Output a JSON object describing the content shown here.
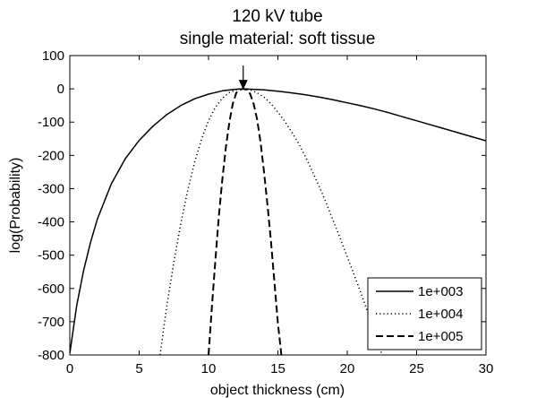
{
  "chart_data": {
    "type": "line",
    "title": "120 kV tube",
    "subtitle": "single material: soft tissue",
    "xlabel": "object thickness (cm)",
    "ylabel": "log(Probability)",
    "xlim": [
      0,
      30
    ],
    "ylim": [
      -800,
      100
    ],
    "xticks": [
      0,
      5,
      10,
      15,
      20,
      25,
      30
    ],
    "yticks": [
      100,
      0,
      -100,
      -200,
      -300,
      -400,
      -500,
      -600,
      -700,
      -800
    ],
    "grid": false,
    "legend_position": "bottom-right",
    "annotation": {
      "type": "arrow",
      "x": 12.5,
      "y": 0
    },
    "series": [
      {
        "name": "1e+003",
        "line_style": "solid",
        "x": [
          0,
          0.5,
          1,
          1.5,
          2,
          3,
          4,
          5,
          6,
          7,
          8,
          9,
          10,
          11,
          12,
          12.5,
          13,
          14,
          15,
          16,
          17,
          18,
          19,
          20,
          21,
          22,
          23,
          24,
          25,
          26,
          27,
          28,
          29,
          30
        ],
        "y": [
          -795,
          -650,
          -545,
          -460,
          -390,
          -285,
          -210,
          -155,
          -112,
          -77,
          -50,
          -30,
          -16,
          -6,
          -1,
          0,
          -1,
          -3,
          -7,
          -12,
          -18,
          -25,
          -33,
          -42,
          -51,
          -61,
          -72,
          -84,
          -96,
          -108,
          -120,
          -132,
          -144,
          -156
        ]
      },
      {
        "name": "1e+004",
        "line_style": "dotted",
        "x": [
          6.5,
          7,
          7.5,
          8,
          8.5,
          9,
          9.5,
          10,
          10.5,
          11,
          11.5,
          12,
          12.5,
          13,
          13.5,
          14,
          14.5,
          15,
          15.5,
          16,
          16.5,
          17,
          17.5,
          18,
          18.5,
          19,
          19.5,
          20,
          20.5,
          21,
          21.5,
          22,
          22.5
        ],
        "y": [
          -800,
          -650,
          -520,
          -405,
          -305,
          -220,
          -150,
          -95,
          -55,
          -28,
          -11,
          -3,
          0,
          -3,
          -12,
          -25,
          -45,
          -70,
          -98,
          -130,
          -165,
          -205,
          -250,
          -295,
          -345,
          -398,
          -450,
          -505,
          -560,
          -615,
          -675,
          -735,
          -800
        ]
      },
      {
        "name": "1e+005",
        "line_style": "dashed",
        "x": [
          10,
          10.25,
          10.5,
          10.75,
          11,
          11.25,
          11.5,
          11.75,
          12,
          12.25,
          12.5,
          12.75,
          13,
          13.25,
          13.5,
          13.75,
          14,
          14.25,
          14.5,
          14.75,
          15,
          15.25
        ],
        "y": [
          -800,
          -650,
          -510,
          -380,
          -270,
          -175,
          -100,
          -45,
          -12,
          -2,
          0,
          -3,
          -15,
          -45,
          -92,
          -160,
          -250,
          -350,
          -460,
          -580,
          -705,
          -800
        ]
      }
    ]
  }
}
